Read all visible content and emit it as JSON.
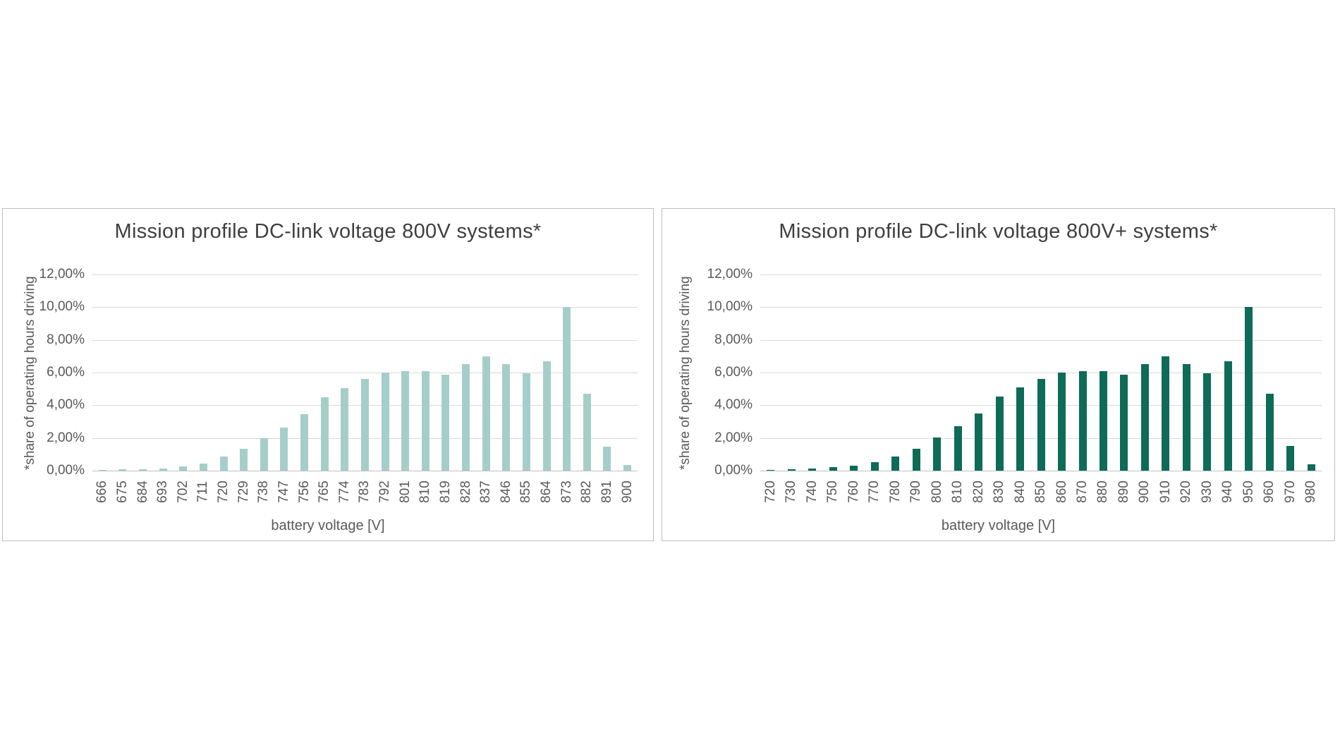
{
  "page": {
    "background_color": "#ffffff",
    "border_color": "#bdbdbd",
    "gridline_color": "#d9d9d9",
    "title_color": "#3f3f3f",
    "axis_label_color": "#595959"
  },
  "chart_data": [
    {
      "type": "bar",
      "title": "Mission profile DC-link voltage 800V systems*",
      "ylabel": "*share of operating hours driving",
      "xlabel": "battery voltage [V]",
      "ylim": [
        0,
        12
      ],
      "grid": true,
      "legend": false,
      "bar_color": "#a6cec9",
      "yticks": [
        "12,00%",
        "10,00%",
        "8,00%",
        "6,00%",
        "4,00%",
        "2,00%",
        "0,00%"
      ],
      "categories": [
        "666",
        "675",
        "684",
        "693",
        "702",
        "711",
        "720",
        "729",
        "738",
        "747",
        "756",
        "765",
        "774",
        "783",
        "792",
        "801",
        "810",
        "819",
        "828",
        "837",
        "846",
        "855",
        "864",
        "873",
        "882",
        "891",
        "900"
      ],
      "values": [
        0.05,
        0.1,
        0.1,
        0.15,
        0.25,
        0.45,
        0.85,
        1.35,
        2.0,
        2.65,
        3.45,
        4.5,
        5.05,
        5.6,
        6.0,
        6.1,
        6.1,
        5.85,
        6.5,
        7.0,
        6.5,
        5.95,
        6.7,
        10.0,
        4.7,
        1.45,
        0.35
      ]
    },
    {
      "type": "bar",
      "title": "Mission profile DC-link voltage 800V+ systems*",
      "ylabel": "*share of operating hours driving",
      "xlabel": "battery voltage [V]",
      "ylim": [
        0,
        12
      ],
      "grid": true,
      "legend": false,
      "bar_color": "#0e6b58",
      "yticks": [
        "12,00%",
        "10,00%",
        "8,00%",
        "6,00%",
        "4,00%",
        "2,00%",
        "0,00%"
      ],
      "categories": [
        "720",
        "730",
        "740",
        "750",
        "760",
        "770",
        "780",
        "790",
        "800",
        "810",
        "820",
        "830",
        "840",
        "850",
        "860",
        "870",
        "880",
        "890",
        "900",
        "910",
        "920",
        "930",
        "940",
        "950",
        "960",
        "970",
        "980"
      ],
      "values": [
        0.05,
        0.1,
        0.15,
        0.2,
        0.3,
        0.5,
        0.85,
        1.35,
        2.05,
        2.7,
        3.5,
        4.55,
        5.1,
        5.6,
        6.0,
        6.1,
        6.1,
        5.85,
        6.5,
        7.0,
        6.5,
        5.95,
        6.7,
        10.0,
        4.7,
        1.5,
        0.4
      ]
    }
  ]
}
